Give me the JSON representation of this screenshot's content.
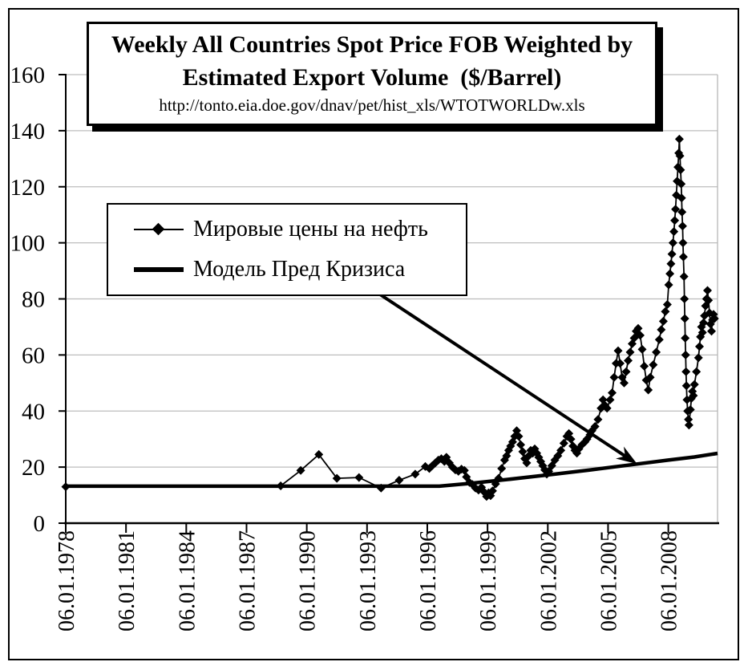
{
  "window": {
    "background": "#ffffff",
    "frame_color": "#000000"
  },
  "title_box": {
    "line1": "Weekly All Countries Spot Price FOB Weighted by",
    "line2": "Estimated Export Volume  ($/Barrel)",
    "source_url": "http://tonto.eia.doe.gov/dnav/pet/hist_xls/WTOTWORLDw.xls"
  },
  "legend": {
    "items": [
      {
        "label": "Мировые цены на нефть",
        "swatch": "thin-line-with-diamond-marker"
      },
      {
        "label": "Модель Пред Кризиса",
        "swatch": "thick-line"
      }
    ]
  },
  "colors": {
    "series": "#000000",
    "grid": "#bdbdbd",
    "plot_border": "#b4b4b4",
    "axis": "#000000"
  },
  "chart_data": {
    "type": "line",
    "title": "Weekly All Countries Spot Price FOB Weighted by Estimated Export Volume ($/Barrel)",
    "subtitle": "http://tonto.eia.doe.gov/dnav/pet/hist_xls/WTOTWORLDw.xls",
    "grid": "horizontal gridlines only, light gray",
    "legend_position": "floating white box in upper-left of plot area",
    "y_axis": {
      "range": [
        0,
        160
      ],
      "ticks": [
        0,
        20,
        40,
        60,
        80,
        100,
        120,
        140,
        160
      ]
    },
    "x_axis": {
      "range_years": [
        1978,
        2010.45
      ],
      "tick_years": [
        1978,
        1981,
        1984,
        1987,
        1990,
        1993,
        1996,
        1999,
        2002,
        2005,
        2008
      ],
      "tick_labels": [
        "06.01.1978",
        "06.01.1981",
        "06.01.1984",
        "06.01.1987",
        "06.01.1990",
        "06.01.1993",
        "06.01.1996",
        "06.01.1999",
        "06.01.2002",
        "06.01.2005",
        "06.01.2008"
      ],
      "label_rotation_deg": 90
    },
    "series": [
      {
        "name": "Мировые цены на нефть",
        "style": {
          "color": "#000000",
          "line_width": 1.8,
          "marker": "diamond",
          "marker_size": 11
        },
        "points": [
          [
            1978.0,
            13.0
          ],
          [
            1988.7,
            13.3
          ],
          [
            1989.7,
            18.8
          ],
          [
            1990.6,
            24.5
          ],
          [
            1991.5,
            16.0
          ],
          [
            1992.6,
            16.3
          ],
          [
            1993.7,
            12.5
          ],
          [
            1994.6,
            15.3
          ],
          [
            1995.4,
            17.5
          ],
          [
            1995.9,
            20.2
          ],
          [
            1996.1,
            19.5
          ],
          [
            1996.25,
            20.5
          ],
          [
            1996.4,
            21.5
          ],
          [
            1996.55,
            22.5
          ],
          [
            1996.7,
            23.0
          ],
          [
            1996.85,
            22.0
          ],
          [
            1996.95,
            23.5
          ],
          [
            1997.1,
            21.5
          ],
          [
            1997.25,
            20.0
          ],
          [
            1997.4,
            19.0
          ],
          [
            1997.55,
            18.5
          ],
          [
            1997.7,
            19.3
          ],
          [
            1997.85,
            18.8
          ],
          [
            1997.95,
            16.5
          ],
          [
            1998.1,
            14.5
          ],
          [
            1998.25,
            13.8
          ],
          [
            1998.4,
            12.5
          ],
          [
            1998.55,
            11.8
          ],
          [
            1998.7,
            12.8
          ],
          [
            1998.85,
            11.0
          ],
          [
            1998.95,
            9.5
          ],
          [
            1999.05,
            10.8
          ],
          [
            1999.15,
            9.8
          ],
          [
            1999.25,
            11.5
          ],
          [
            1999.4,
            14.0
          ],
          [
            1999.55,
            16.0
          ],
          [
            1999.7,
            19.5
          ],
          [
            1999.85,
            22.5
          ],
          [
            1999.95,
            24.0
          ],
          [
            2000.05,
            26.0
          ],
          [
            2000.15,
            27.5
          ],
          [
            2000.25,
            29.0
          ],
          [
            2000.35,
            31.0
          ],
          [
            2000.45,
            33.0
          ],
          [
            2000.55,
            31.0
          ],
          [
            2000.65,
            28.0
          ],
          [
            2000.75,
            25.5
          ],
          [
            2000.85,
            23.0
          ],
          [
            2000.95,
            21.5
          ],
          [
            2001.05,
            24.0
          ],
          [
            2001.15,
            26.0
          ],
          [
            2001.25,
            25.0
          ],
          [
            2001.35,
            26.5
          ],
          [
            2001.45,
            25.0
          ],
          [
            2001.55,
            23.5
          ],
          [
            2001.65,
            22.0
          ],
          [
            2001.75,
            20.5
          ],
          [
            2001.85,
            19.0
          ],
          [
            2001.95,
            17.5
          ],
          [
            2002.05,
            18.5
          ],
          [
            2002.2,
            20.5
          ],
          [
            2002.35,
            22.5
          ],
          [
            2002.5,
            24.0
          ],
          [
            2002.65,
            26.0
          ],
          [
            2002.8,
            28.5
          ],
          [
            2002.95,
            31.0
          ],
          [
            2003.05,
            32.0
          ],
          [
            2003.15,
            30.0
          ],
          [
            2003.25,
            27.5
          ],
          [
            2003.35,
            26.0
          ],
          [
            2003.45,
            25.0
          ],
          [
            2003.55,
            26.5
          ],
          [
            2003.7,
            28.0
          ],
          [
            2003.85,
            29.0
          ],
          [
            2003.95,
            30.0
          ],
          [
            2004.1,
            31.5
          ],
          [
            2004.2,
            33.0
          ],
          [
            2004.35,
            34.5
          ],
          [
            2004.5,
            37.0
          ],
          [
            2004.65,
            41.0
          ],
          [
            2004.75,
            44.0
          ],
          [
            2004.85,
            42.0
          ],
          [
            2004.95,
            41.0
          ],
          [
            2005.1,
            44.0
          ],
          [
            2005.2,
            46.5
          ],
          [
            2005.3,
            52.0
          ],
          [
            2005.4,
            57.0
          ],
          [
            2005.5,
            61.5
          ],
          [
            2005.6,
            57.0
          ],
          [
            2005.7,
            52.0
          ],
          [
            2005.8,
            50.0
          ],
          [
            2005.9,
            54.0
          ],
          [
            2006.0,
            58.0
          ],
          [
            2006.1,
            61.0
          ],
          [
            2006.2,
            64.0
          ],
          [
            2006.3,
            66.0
          ],
          [
            2006.4,
            68.5
          ],
          [
            2006.5,
            69.5
          ],
          [
            2006.6,
            67.0
          ],
          [
            2006.7,
            62.0
          ],
          [
            2006.8,
            56.0
          ],
          [
            2006.9,
            51.0
          ],
          [
            2007.0,
            47.5
          ],
          [
            2007.1,
            52.0
          ],
          [
            2007.25,
            56.5
          ],
          [
            2007.4,
            61.0
          ],
          [
            2007.55,
            65.5
          ],
          [
            2007.65,
            69.0
          ],
          [
            2007.75,
            72.0
          ],
          [
            2007.85,
            75.5
          ],
          [
            2007.95,
            78.0
          ],
          [
            2008.02,
            85.0
          ],
          [
            2008.08,
            89.0
          ],
          [
            2008.13,
            92.5
          ],
          [
            2008.18,
            96.0
          ],
          [
            2008.23,
            100.0
          ],
          [
            2008.28,
            104.0
          ],
          [
            2008.32,
            108.0
          ],
          [
            2008.36,
            112.0
          ],
          [
            2008.4,
            117.0
          ],
          [
            2008.44,
            122.0
          ],
          [
            2008.48,
            127.0
          ],
          [
            2008.52,
            132.0
          ],
          [
            2008.55,
            137.0
          ],
          [
            2008.58,
            131.0
          ],
          [
            2008.61,
            126.0
          ],
          [
            2008.64,
            121.0
          ],
          [
            2008.66,
            116.0
          ],
          [
            2008.68,
            111.0
          ],
          [
            2008.71,
            106.0
          ],
          [
            2008.73,
            100.0
          ],
          [
            2008.75,
            95.0
          ],
          [
            2008.78,
            88.0
          ],
          [
            2008.8,
            80.0
          ],
          [
            2008.82,
            73.0
          ],
          [
            2008.84,
            66.0
          ],
          [
            2008.86,
            60.0
          ],
          [
            2008.88,
            54.0
          ],
          [
            2008.9,
            49.0
          ],
          [
            2008.93,
            44.0
          ],
          [
            2008.96,
            40.0
          ],
          [
            2009.0,
            37.0
          ],
          [
            2009.03,
            35.0
          ],
          [
            2009.1,
            40.5
          ],
          [
            2009.15,
            44.5
          ],
          [
            2009.2,
            47.0
          ],
          [
            2009.25,
            45.5
          ],
          [
            2009.3,
            49.5
          ],
          [
            2009.4,
            54.0
          ],
          [
            2009.5,
            59.0
          ],
          [
            2009.55,
            63.0
          ],
          [
            2009.6,
            66.5
          ],
          [
            2009.65,
            70.0
          ],
          [
            2009.7,
            68.0
          ],
          [
            2009.75,
            71.5
          ],
          [
            2009.8,
            74.0
          ],
          [
            2009.85,
            77.5
          ],
          [
            2009.9,
            80.0
          ],
          [
            2009.95,
            83.0
          ],
          [
            2010.0,
            79.5
          ],
          [
            2010.05,
            75.0
          ],
          [
            2010.1,
            71.0
          ],
          [
            2010.15,
            68.5
          ],
          [
            2010.2,
            72.5
          ],
          [
            2010.25,
            74.5
          ],
          [
            2010.3,
            73.0
          ]
        ]
      },
      {
        "name": "Модель Пред Кризиса",
        "style": {
          "color": "#000000",
          "line_width": 4.5,
          "marker": "none"
        },
        "points": [
          [
            1978,
            13.2
          ],
          [
            1996.6,
            13.2
          ],
          [
            1998,
            14.1
          ],
          [
            2000,
            15.6
          ],
          [
            2002,
            17.2
          ],
          [
            2004,
            18.9
          ],
          [
            2006,
            20.7
          ],
          [
            2008,
            22.5
          ],
          [
            2009.3,
            23.6
          ],
          [
            2010.45,
            24.9
          ]
        ]
      }
    ],
    "annotation_arrow": {
      "from": [
        1993.35,
        83.0
      ],
      "to": [
        2006.45,
        21.1
      ],
      "meaning": "arrow from legend entry 'Модель Пред Кризиса' down to the model line"
    }
  }
}
